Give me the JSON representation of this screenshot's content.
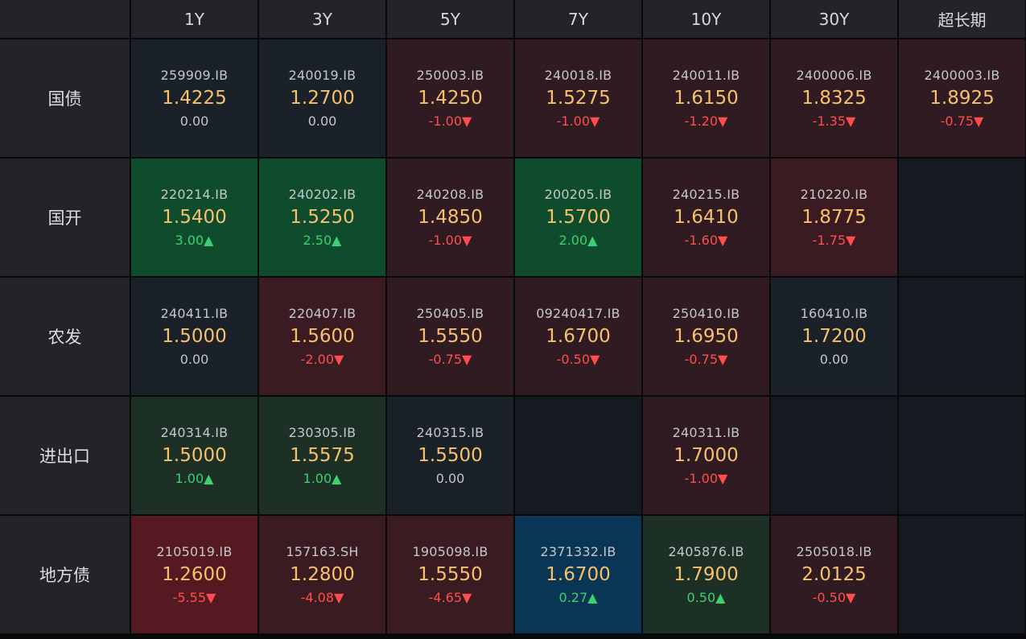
{
  "headers": {
    "corner": "",
    "tenors": [
      "1Y",
      "3Y",
      "5Y",
      "7Y",
      "10Y",
      "30Y",
      "超长期"
    ]
  },
  "rows": [
    {
      "label": "国债",
      "cells": [
        {
          "code": "259909.IB",
          "yield": "1.4225",
          "change": "0.00"
        },
        {
          "code": "240019.IB",
          "yield": "1.2700",
          "change": "0.00"
        },
        {
          "code": "250003.IB",
          "yield": "1.4250",
          "change": "-1.00▼"
        },
        {
          "code": "240018.IB",
          "yield": "1.5275",
          "change": "-1.00▼"
        },
        {
          "code": "240011.IB",
          "yield": "1.6150",
          "change": "-1.20▼"
        },
        {
          "code": "2400006.IB",
          "yield": "1.8325",
          "change": "-1.35▼"
        },
        {
          "code": "2400003.IB",
          "yield": "1.8925",
          "change": "-0.75▼"
        }
      ]
    },
    {
      "label": "国开",
      "cells": [
        {
          "code": "220214.IB",
          "yield": "1.5400",
          "change": "3.00▲"
        },
        {
          "code": "240202.IB",
          "yield": "1.5250",
          "change": "2.50▲"
        },
        {
          "code": "240208.IB",
          "yield": "1.4850",
          "change": "-1.00▼"
        },
        {
          "code": "200205.IB",
          "yield": "1.5700",
          "change": "2.00▲"
        },
        {
          "code": "240215.IB",
          "yield": "1.6410",
          "change": "-1.60▼"
        },
        {
          "code": "210220.IB",
          "yield": "1.8775",
          "change": "-1.75▼"
        },
        {
          "code": "",
          "yield": "",
          "change": ""
        }
      ]
    },
    {
      "label": "农发",
      "cells": [
        {
          "code": "240411.IB",
          "yield": "1.5000",
          "change": "0.00"
        },
        {
          "code": "220407.IB",
          "yield": "1.5600",
          "change": "-2.00▼"
        },
        {
          "code": "250405.IB",
          "yield": "1.5550",
          "change": "-0.75▼"
        },
        {
          "code": "09240417.IB",
          "yield": "1.6700",
          "change": "-0.50▼"
        },
        {
          "code": "250410.IB",
          "yield": "1.6950",
          "change": "-0.75▼"
        },
        {
          "code": "160410.IB",
          "yield": "1.7200",
          "change": "0.00"
        },
        {
          "code": "",
          "yield": "",
          "change": ""
        }
      ]
    },
    {
      "label": "进出口",
      "cells": [
        {
          "code": "240314.IB",
          "yield": "1.5000",
          "change": "1.00▲"
        },
        {
          "code": "230305.IB",
          "yield": "1.5575",
          "change": "1.00▲"
        },
        {
          "code": "240315.IB",
          "yield": "1.5500",
          "change": "0.00"
        },
        {
          "code": "",
          "yield": "",
          "change": ""
        },
        {
          "code": "240311.IB",
          "yield": "1.7000",
          "change": "-1.00▼"
        },
        {
          "code": "",
          "yield": "",
          "change": ""
        },
        {
          "code": "",
          "yield": "",
          "change": ""
        }
      ]
    },
    {
      "label": "地方债",
      "cells": [
        {
          "code": "2105019.IB",
          "yield": "1.2600",
          "change": "-5.55▼"
        },
        {
          "code": "157163.SH",
          "yield": "1.2800",
          "change": "-4.08▼"
        },
        {
          "code": "1905098.IB",
          "yield": "1.5550",
          "change": "-4.65▼"
        },
        {
          "code": "2371332.IB",
          "yield": "1.6700",
          "change": "0.27▲"
        },
        {
          "code": "2405876.IB",
          "yield": "1.7900",
          "change": "0.50▲"
        },
        {
          "code": "2505018.IB",
          "yield": "2.0125",
          "change": "-0.50▼"
        },
        {
          "code": "",
          "yield": "",
          "change": ""
        }
      ]
    }
  ],
  "colors": {
    "yield": "#f7c06b",
    "up": "#3bd16f",
    "down": "#ff4d4f",
    "neutral_bg": "#1a2128",
    "red_bg": "#3a1b22",
    "green_bg": "#0f4c2e",
    "blue_bg": "#093655"
  }
}
